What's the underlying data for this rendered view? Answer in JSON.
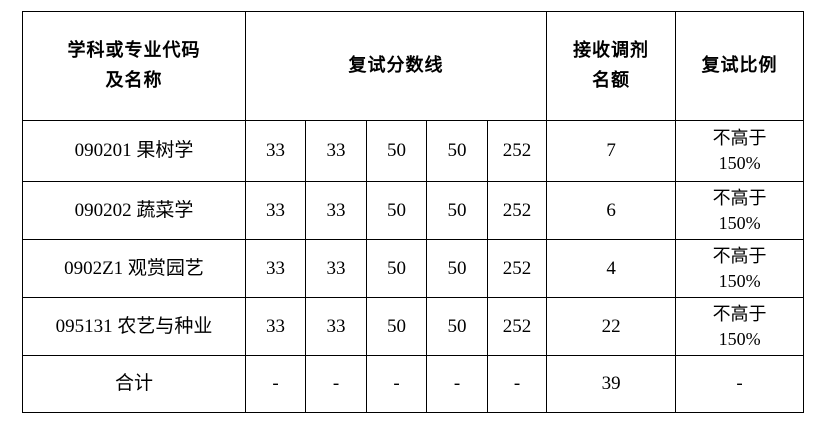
{
  "header": {
    "col1": "学科或专业代码\n及名称",
    "col1_line1": "学科或专业代码",
    "col1_line2": "及名称",
    "scores": "复试分数线",
    "quota_line1": "接收调剂",
    "quota_line2": "名额",
    "ratio": "复试比例"
  },
  "rows": [
    {
      "name": "090201 果树学",
      "scores": [
        "33",
        "33",
        "50",
        "50",
        "252"
      ],
      "quota": "7",
      "ratio_line1": "不高于",
      "ratio_line2": "150%"
    },
    {
      "name": "090202 蔬菜学",
      "scores": [
        "33",
        "33",
        "50",
        "50",
        "252"
      ],
      "quota": "6",
      "ratio_line1": "不高于",
      "ratio_line2": "150%"
    },
    {
      "name": "0902Z1 观赏园艺",
      "scores": [
        "33",
        "33",
        "50",
        "50",
        "252"
      ],
      "quota": "4",
      "ratio_line1": "不高于",
      "ratio_line2": "150%"
    },
    {
      "name": "095131 农艺与种业",
      "scores": [
        "33",
        "33",
        "50",
        "50",
        "252"
      ],
      "quota": "22",
      "ratio_line1": "不高于",
      "ratio_line2": "150%"
    }
  ],
  "total": {
    "name": "合计",
    "scores": [
      "-",
      "-",
      "-",
      "-",
      "-"
    ],
    "quota": "39",
    "ratio": "-"
  }
}
